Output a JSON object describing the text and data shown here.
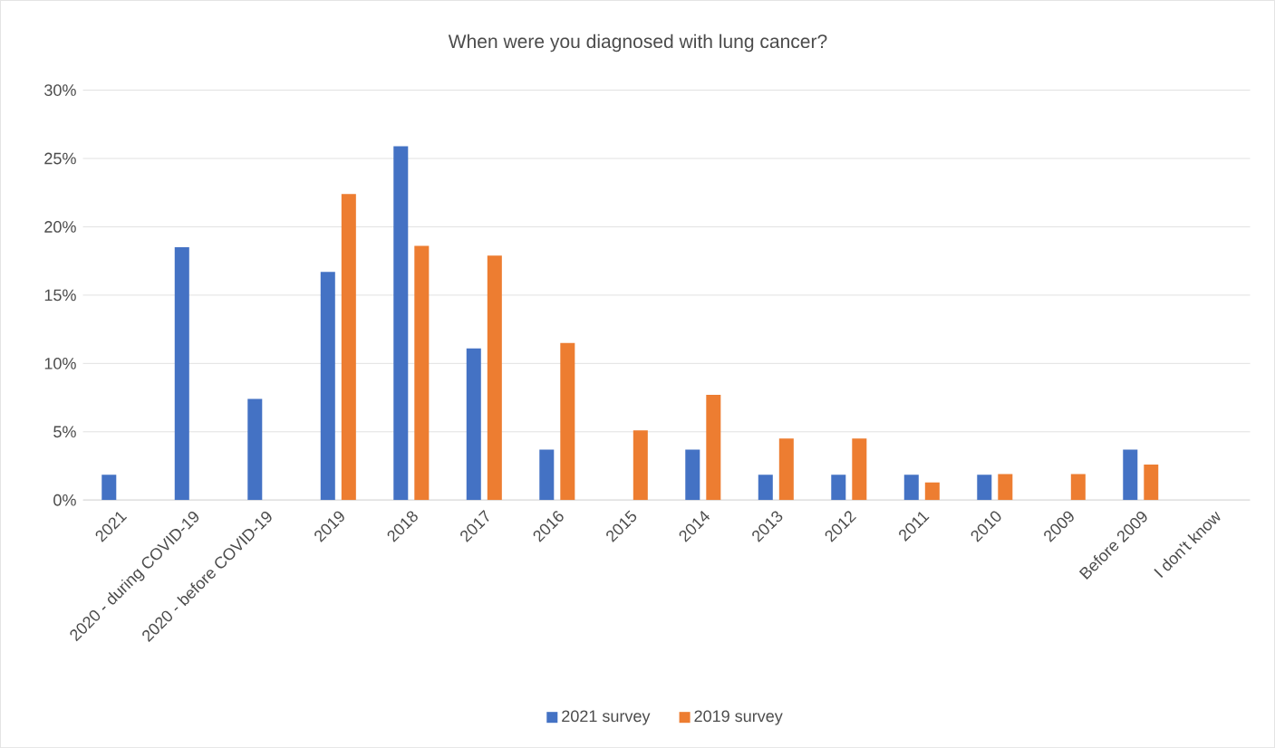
{
  "chart_data": {
    "type": "bar",
    "title": "When were you diagnosed with lung cancer?",
    "categories": [
      "2021",
      "2020 - during COVID-19",
      "2020 - before COVID-19",
      "2019",
      "2018",
      "2017",
      "2016",
      "2015",
      "2014",
      "2013",
      "2012",
      "2011",
      "2010",
      "2009",
      "Before 2009",
      "I don't know"
    ],
    "series": [
      {
        "name": "2021 survey",
        "color": "#4472c4",
        "values": [
          1.85,
          18.5,
          7.4,
          16.7,
          25.9,
          11.1,
          3.7,
          null,
          3.7,
          1.85,
          1.85,
          1.85,
          1.85,
          null,
          3.7,
          null
        ]
      },
      {
        "name": "2019 survey",
        "color": "#ed7d31",
        "values": [
          null,
          null,
          null,
          22.4,
          18.6,
          17.9,
          11.5,
          5.1,
          7.7,
          4.5,
          4.5,
          1.3,
          1.9,
          1.9,
          2.6,
          null
        ]
      }
    ],
    "ylim": [
      0,
      30
    ],
    "yticks": [
      {
        "value": 0,
        "label": "0%"
      },
      {
        "value": 5,
        "label": "5%"
      },
      {
        "value": 10,
        "label": "10%"
      },
      {
        "value": 15,
        "label": "15%"
      },
      {
        "value": 20,
        "label": "20%"
      },
      {
        "value": 25,
        "label": "25%"
      },
      {
        "value": 30,
        "label": "30%"
      }
    ],
    "grid": "y",
    "legend": "bottom"
  }
}
